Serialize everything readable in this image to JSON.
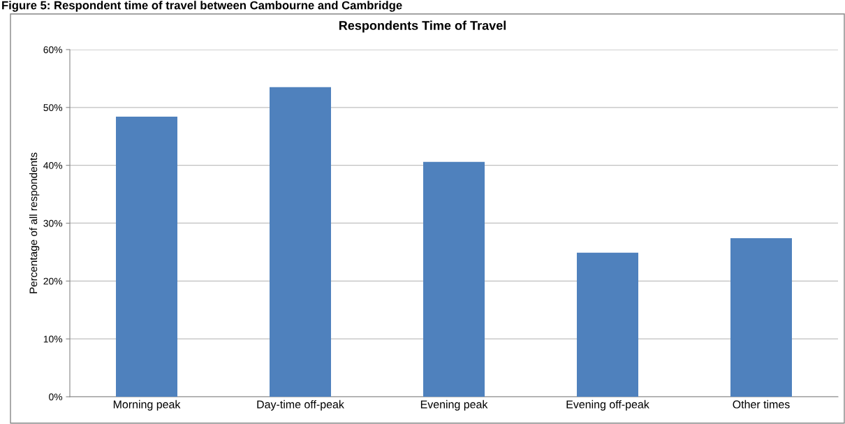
{
  "chart_data": {
    "type": "bar",
    "title": "Respondents Time of Travel",
    "ylabel": "Percentage of all respondents",
    "annotations": [
      "Figure 5: Respondent time of travel between Cambourne and Cambridge"
    ],
    "categories": [
      "Morning peak",
      "Day-time off-peak",
      "Evening peak",
      "Evening off-peak",
      "Other times"
    ],
    "values": [
      48.4,
      53.5,
      40.6,
      24.9,
      27.4
    ],
    "color": "#4f81bd",
    "ylim": [
      0,
      60
    ],
    "yticks": [
      {
        "value": 0,
        "label": "0%"
      },
      {
        "value": 10,
        "label": "10%"
      },
      {
        "value": 20,
        "label": "20%"
      },
      {
        "value": 30,
        "label": "30%"
      },
      {
        "value": 40,
        "label": "40%"
      },
      {
        "value": 50,
        "label": "50%"
      },
      {
        "value": 60,
        "label": "60%"
      }
    ],
    "grid": "y"
  }
}
